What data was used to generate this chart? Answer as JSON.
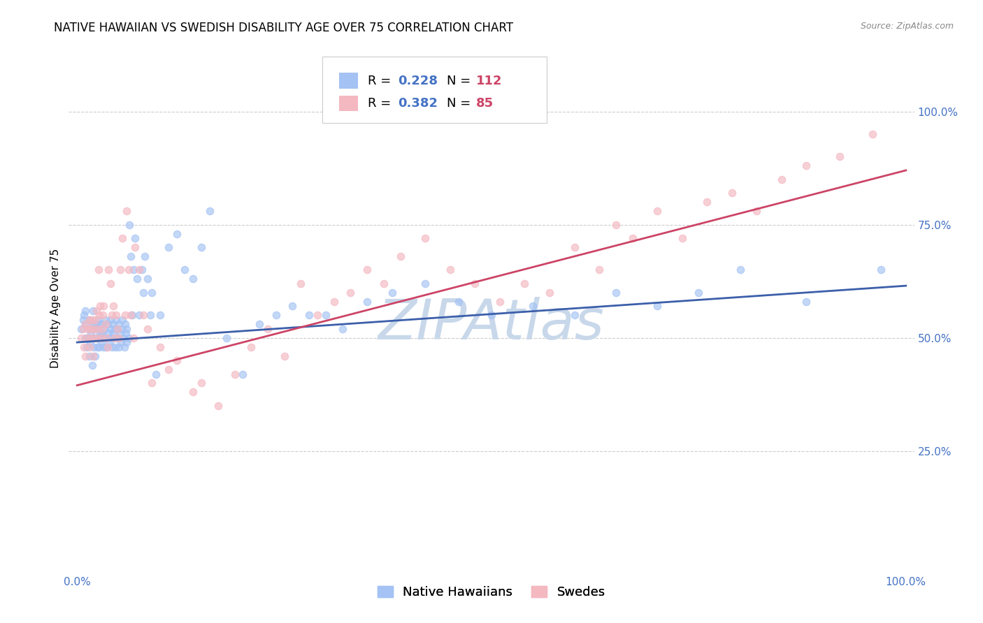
{
  "title": "NATIVE HAWAIIAN VS SWEDISH DISABILITY AGE OVER 75 CORRELATION CHART",
  "source": "Source: ZipAtlas.com",
  "ylabel": "Disability Age Over 75",
  "watermark": "ZIPAtlas",
  "blue_color": "#a4c2f4",
  "pink_color": "#f4b8c1",
  "line_blue": "#3c5faa",
  "line_pink": "#cc4466",
  "text_blue": "#4472c4",
  "text_pink": "#cc4466",
  "bg_color": "#ffffff",
  "grid_color": "#cccccc",
  "watermark_color": "#c8d8ea",
  "marker_size": 55,
  "marker_alpha": 0.65,
  "tick_color": "#4472c4",
  "tick_fontsize": 11,
  "label_fontsize": 11,
  "title_fontsize": 12,
  "legend_fontsize": 13,
  "xlim": [
    -0.01,
    1.01
  ],
  "ylim": [
    -0.02,
    1.15
  ],
  "blue_trend_y0": 0.49,
  "blue_trend_y1": 0.615,
  "pink_trend_y0": 0.395,
  "pink_trend_y1": 0.87,
  "blue_x": [
    0.005,
    0.007,
    0.008,
    0.01,
    0.01,
    0.01,
    0.012,
    0.013,
    0.014,
    0.015,
    0.015,
    0.016,
    0.017,
    0.018,
    0.018,
    0.019,
    0.02,
    0.02,
    0.02,
    0.022,
    0.022,
    0.023,
    0.024,
    0.025,
    0.025,
    0.026,
    0.027,
    0.028,
    0.028,
    0.029,
    0.03,
    0.03,
    0.031,
    0.032,
    0.033,
    0.034,
    0.035,
    0.035,
    0.037,
    0.038,
    0.039,
    0.04,
    0.04,
    0.041,
    0.042,
    0.043,
    0.044,
    0.045,
    0.045,
    0.046,
    0.047,
    0.048,
    0.049,
    0.05,
    0.05,
    0.052,
    0.053,
    0.054,
    0.055,
    0.056,
    0.057,
    0.058,
    0.059,
    0.06,
    0.06,
    0.062,
    0.063,
    0.065,
    0.066,
    0.068,
    0.07,
    0.072,
    0.075,
    0.078,
    0.08,
    0.082,
    0.085,
    0.088,
    0.09,
    0.095,
    0.1,
    0.11,
    0.12,
    0.13,
    0.14,
    0.15,
    0.16,
    0.18,
    0.2,
    0.22,
    0.24,
    0.26,
    0.28,
    0.3,
    0.32,
    0.35,
    0.38,
    0.42,
    0.46,
    0.5,
    0.55,
    0.6,
    0.65,
    0.7,
    0.75,
    0.8,
    0.88,
    0.97
  ],
  "blue_y": [
    0.52,
    0.54,
    0.55,
    0.5,
    0.53,
    0.56,
    0.48,
    0.5,
    0.52,
    0.54,
    0.46,
    0.49,
    0.51,
    0.53,
    0.44,
    0.56,
    0.5,
    0.52,
    0.48,
    0.53,
    0.46,
    0.5,
    0.48,
    0.52,
    0.54,
    0.5,
    0.48,
    0.53,
    0.51,
    0.49,
    0.51,
    0.53,
    0.5,
    0.48,
    0.52,
    0.54,
    0.5,
    0.48,
    0.53,
    0.51,
    0.49,
    0.52,
    0.54,
    0.5,
    0.48,
    0.53,
    0.51,
    0.52,
    0.5,
    0.48,
    0.54,
    0.52,
    0.5,
    0.48,
    0.53,
    0.51,
    0.49,
    0.52,
    0.54,
    0.5,
    0.48,
    0.53,
    0.51,
    0.49,
    0.52,
    0.5,
    0.75,
    0.68,
    0.55,
    0.65,
    0.72,
    0.63,
    0.55,
    0.65,
    0.6,
    0.68,
    0.63,
    0.55,
    0.6,
    0.42,
    0.55,
    0.7,
    0.73,
    0.65,
    0.63,
    0.7,
    0.78,
    0.5,
    0.42,
    0.53,
    0.55,
    0.57,
    0.55,
    0.55,
    0.52,
    0.58,
    0.6,
    0.62,
    0.58,
    0.55,
    0.57,
    0.55,
    0.6,
    0.57,
    0.6,
    0.65,
    0.58,
    0.65
  ],
  "pink_x": [
    0.005,
    0.007,
    0.008,
    0.01,
    0.01,
    0.012,
    0.013,
    0.015,
    0.015,
    0.016,
    0.017,
    0.018,
    0.019,
    0.02,
    0.02,
    0.022,
    0.023,
    0.024,
    0.025,
    0.026,
    0.027,
    0.028,
    0.029,
    0.03,
    0.031,
    0.032,
    0.034,
    0.035,
    0.037,
    0.038,
    0.04,
    0.042,
    0.044,
    0.045,
    0.047,
    0.049,
    0.05,
    0.052,
    0.055,
    0.058,
    0.06,
    0.062,
    0.065,
    0.068,
    0.07,
    0.075,
    0.08,
    0.085,
    0.09,
    0.1,
    0.11,
    0.12,
    0.14,
    0.15,
    0.17,
    0.19,
    0.21,
    0.23,
    0.25,
    0.27,
    0.29,
    0.31,
    0.33,
    0.35,
    0.37,
    0.39,
    0.42,
    0.45,
    0.48,
    0.51,
    0.54,
    0.57,
    0.6,
    0.63,
    0.65,
    0.67,
    0.7,
    0.73,
    0.76,
    0.79,
    0.82,
    0.85,
    0.88,
    0.92,
    0.96
  ],
  "pink_y": [
    0.5,
    0.52,
    0.48,
    0.53,
    0.46,
    0.5,
    0.52,
    0.54,
    0.48,
    0.5,
    0.52,
    0.54,
    0.46,
    0.5,
    0.52,
    0.54,
    0.56,
    0.5,
    0.52,
    0.65,
    0.55,
    0.57,
    0.5,
    0.52,
    0.55,
    0.57,
    0.53,
    0.5,
    0.48,
    0.65,
    0.62,
    0.55,
    0.57,
    0.5,
    0.55,
    0.52,
    0.5,
    0.65,
    0.72,
    0.55,
    0.78,
    0.65,
    0.55,
    0.5,
    0.7,
    0.65,
    0.55,
    0.52,
    0.4,
    0.48,
    0.43,
    0.45,
    0.38,
    0.4,
    0.35,
    0.42,
    0.48,
    0.52,
    0.46,
    0.62,
    0.55,
    0.58,
    0.6,
    0.65,
    0.62,
    0.68,
    0.72,
    0.65,
    0.62,
    0.58,
    0.62,
    0.6,
    0.7,
    0.65,
    0.75,
    0.72,
    0.78,
    0.72,
    0.8,
    0.82,
    0.78,
    0.85,
    0.88,
    0.9,
    0.95
  ],
  "ytick_positions": [
    0.25,
    0.5,
    0.75,
    1.0
  ],
  "ytick_labels": [
    "25.0%",
    "50.0%",
    "75.0%",
    "100.0%"
  ],
  "xtick_positions": [
    0.0,
    1.0
  ],
  "xtick_labels": [
    "0.0%",
    "100.0%"
  ]
}
